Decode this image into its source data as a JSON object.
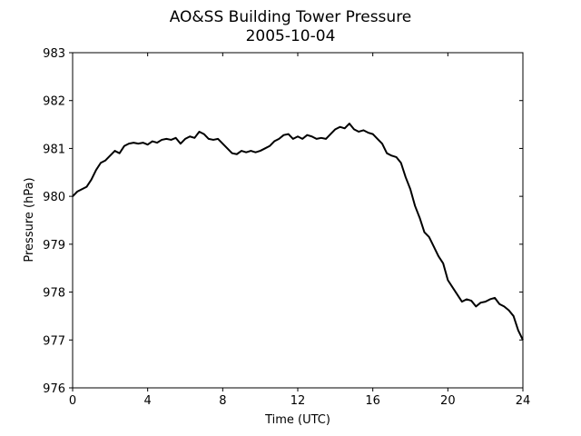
{
  "chart_data": {
    "type": "line",
    "title": "AO&SS Building Tower Pressure",
    "subtitle": "2005-10-04",
    "xlabel": "Time (UTC)",
    "ylabel": "Pressure (hPa)",
    "xlim": [
      0,
      24
    ],
    "ylim": [
      976,
      983
    ],
    "xticks": [
      0,
      4,
      8,
      12,
      16,
      20,
      24
    ],
    "yticks": [
      976,
      977,
      978,
      979,
      980,
      981,
      982,
      983
    ],
    "grid": false,
    "legend": "none",
    "series": [
      {
        "color": "#000000",
        "x": [
          0,
          0.25,
          0.5,
          0.75,
          1.0,
          1.25,
          1.5,
          1.75,
          2.0,
          2.25,
          2.5,
          2.75,
          3.0,
          3.25,
          3.5,
          3.75,
          4.0,
          4.25,
          4.5,
          4.75,
          5.0,
          5.25,
          5.5,
          5.75,
          6.0,
          6.25,
          6.5,
          6.75,
          7.0,
          7.25,
          7.5,
          7.75,
          8.0,
          8.25,
          8.5,
          8.75,
          9.0,
          9.25,
          9.5,
          9.75,
          10.0,
          10.25,
          10.5,
          10.75,
          11.0,
          11.25,
          11.5,
          11.75,
          12.0,
          12.25,
          12.5,
          12.75,
          13.0,
          13.25,
          13.5,
          13.75,
          14.0,
          14.25,
          14.5,
          14.75,
          15.0,
          15.25,
          15.5,
          15.75,
          16.0,
          16.25,
          16.5,
          16.75,
          17.0,
          17.25,
          17.5,
          17.75,
          18.0,
          18.25,
          18.5,
          18.75,
          19.0,
          19.25,
          19.5,
          19.75,
          20.0,
          20.25,
          20.5,
          20.75,
          21.0,
          21.25,
          21.5,
          21.75,
          22.0,
          22.25,
          22.5,
          22.75,
          23.0,
          23.25,
          23.5,
          23.75,
          24.0
        ],
        "y": [
          980.0,
          980.1,
          980.15,
          980.2,
          980.35,
          980.55,
          980.7,
          980.75,
          980.85,
          980.95,
          980.9,
          981.05,
          981.1,
          981.12,
          981.1,
          981.12,
          981.08,
          981.15,
          981.12,
          981.18,
          981.2,
          981.18,
          981.22,
          981.1,
          981.2,
          981.25,
          981.22,
          981.35,
          981.3,
          981.2,
          981.18,
          981.2,
          981.1,
          981.0,
          980.9,
          980.88,
          980.95,
          980.92,
          980.95,
          980.92,
          980.95,
          981.0,
          981.05,
          981.15,
          981.2,
          981.28,
          981.3,
          981.2,
          981.25,
          981.2,
          981.28,
          981.25,
          981.2,
          981.22,
          981.2,
          981.3,
          981.4,
          981.45,
          981.42,
          981.52,
          981.4,
          981.35,
          981.38,
          981.33,
          981.3,
          981.2,
          981.1,
          980.9,
          980.85,
          980.82,
          980.7,
          980.4,
          980.15,
          979.8,
          979.55,
          979.25,
          979.15,
          978.95,
          978.75,
          978.6,
          978.25,
          978.1,
          977.95,
          977.8,
          977.85,
          977.82,
          977.7,
          977.78,
          977.8,
          977.85,
          977.88,
          977.75,
          977.7,
          977.62,
          977.5,
          977.2,
          977.0
        ]
      }
    ]
  }
}
